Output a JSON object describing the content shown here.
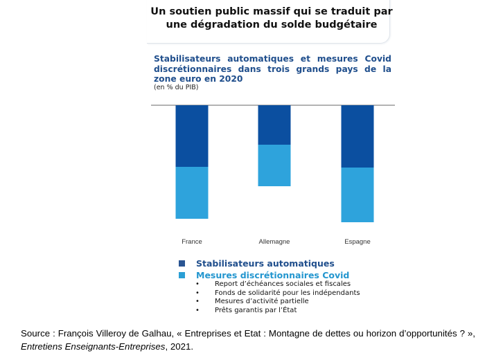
{
  "header_title": "Un soutien public massif qui se traduit par une dégradation du solde budgétaire",
  "chart_data": {
    "type": "bar",
    "stacked": true,
    "title": "Stabilisateurs automatiques et mesures Covid discrétionnaires dans trois grands pays de la zone euro en 2020",
    "unit_label": "(en % du PIB)",
    "categories": [
      "France",
      "Allemagne",
      "Espagne"
    ],
    "series": [
      {
        "name": "Stabilisateurs automatiques",
        "color": "#0b4fa0",
        "values": [
          -8.9,
          -5.7,
          -9.0
        ]
      },
      {
        "name": "Mesures discrétionnaires Covid",
        "color": "#2ea3dc",
        "values": [
          -7.5,
          -6.0,
          -7.9
        ]
      }
    ],
    "ylim": [
      -17,
      0
    ],
    "note": "values are relative estimates; no numeric axis shown",
    "grid": false,
    "legend_position": "bottom"
  },
  "legend": {
    "items": [
      {
        "label": "Stabilisateurs automatiques",
        "color": "#2a5592",
        "text_color": "#1f4e8c"
      },
      {
        "label": "Mesures discrétionnaires Covid",
        "color": "#2b9fd5",
        "text_color": "#2396cf"
      }
    ],
    "bullets": [
      "Report d’échéances sociales et fiscales",
      "Fonds de solidarité pour les indépendants",
      "Mesures d’activité partielle",
      "Prêts garantis par l’État"
    ],
    "bullet_char": "•"
  },
  "source": {
    "prefix": "Source : François Villeroy de Galhau, « Entreprises et Etat : Montagne de dettes ou horizon d’opportunités ? », ",
    "publication": "Entretiens Enseignants-Entreprises",
    "suffix": ", 2021."
  }
}
